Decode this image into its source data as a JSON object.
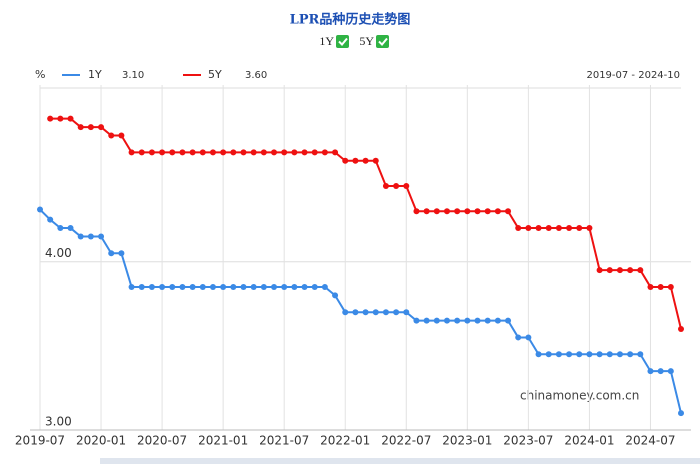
{
  "chart_data": {
    "type": "line",
    "title": "LPR品种历史走势图",
    "y_unit": "%",
    "date_range": "2019-07 - 2024-10",
    "watermark": "chinamoney.com.cn",
    "legend_values": [
      "3.10",
      "3.60"
    ],
    "categories": [
      "2019-07",
      null,
      null,
      null,
      null,
      null,
      "2020-01",
      null,
      null,
      null,
      null,
      null,
      "2020-07",
      null,
      null,
      null,
      null,
      null,
      "2021-01",
      null,
      null,
      null,
      null,
      null,
      "2021-07",
      null,
      null,
      null,
      null,
      null,
      "2022-01",
      null,
      null,
      null,
      null,
      null,
      "2022-07",
      null,
      null,
      null,
      null,
      null,
      "2023-01",
      null,
      null,
      null,
      null,
      null,
      "2023-07",
      null,
      null,
      null,
      null,
      null,
      "2024-01",
      null,
      null,
      null,
      null,
      null,
      "2024-07",
      null,
      null,
      null
    ],
    "series": [
      {
        "name": "1Y",
        "color": "#3b8ae6",
        "values": [
          4.31,
          4.25,
          4.2,
          4.2,
          4.15,
          4.15,
          4.15,
          4.05,
          4.05,
          3.85,
          3.85,
          3.85,
          3.85,
          3.85,
          3.85,
          3.85,
          3.85,
          3.85,
          3.85,
          3.85,
          3.85,
          3.85,
          3.85,
          3.85,
          3.85,
          3.85,
          3.85,
          3.85,
          3.85,
          3.8,
          3.7,
          3.7,
          3.7,
          3.7,
          3.7,
          3.7,
          3.7,
          3.65,
          3.65,
          3.65,
          3.65,
          3.65,
          3.65,
          3.65,
          3.65,
          3.65,
          3.65,
          3.55,
          3.55,
          3.45,
          3.45,
          3.45,
          3.45,
          3.45,
          3.45,
          3.45,
          3.45,
          3.45,
          3.45,
          3.45,
          3.35,
          3.35,
          3.35,
          3.1
        ]
      },
      {
        "name": "5Y",
        "color": "#ee1111",
        "values": [
          null,
          4.85,
          4.85,
          4.85,
          4.8,
          4.8,
          4.8,
          4.75,
          4.75,
          4.65,
          4.65,
          4.65,
          4.65,
          4.65,
          4.65,
          4.65,
          4.65,
          4.65,
          4.65,
          4.65,
          4.65,
          4.65,
          4.65,
          4.65,
          4.65,
          4.65,
          4.65,
          4.65,
          4.65,
          4.65,
          4.6,
          4.6,
          4.6,
          4.6,
          4.45,
          4.45,
          4.45,
          4.3,
          4.3,
          4.3,
          4.3,
          4.3,
          4.3,
          4.3,
          4.3,
          4.3,
          4.3,
          4.2,
          4.2,
          4.2,
          4.2,
          4.2,
          4.2,
          4.2,
          4.2,
          3.95,
          3.95,
          3.95,
          3.95,
          3.95,
          3.85,
          3.85,
          3.85,
          3.6
        ]
      }
    ],
    "ylim": [
      3,
      5.05
    ],
    "yticks": [
      {
        "value": 3,
        "label": "3.00"
      },
      {
        "value": 4,
        "label": "4.00"
      }
    ],
    "grid": true
  }
}
